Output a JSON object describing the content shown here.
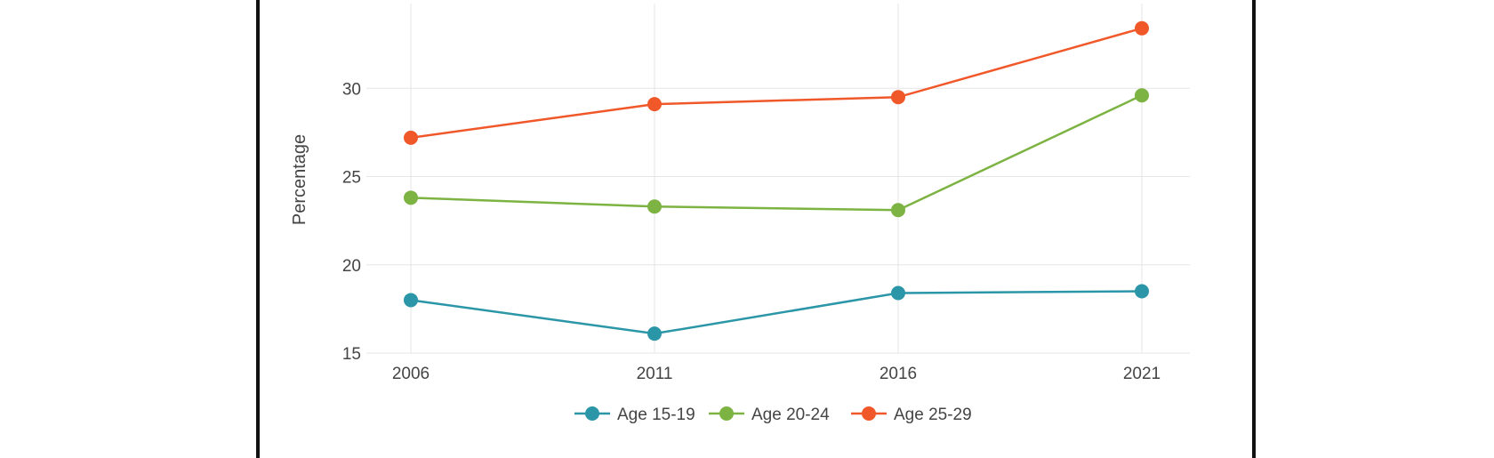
{
  "chart_data": {
    "type": "line",
    "title": "",
    "xlabel": "",
    "ylabel": "Percentage",
    "x": [
      "2006",
      "2011",
      "2016",
      "2021"
    ],
    "ylim": [
      15,
      34.8
    ],
    "yticks": [
      15,
      20,
      25,
      30
    ],
    "grid": true,
    "legend_position": "bottom",
    "series": [
      {
        "name": "Age 15-19",
        "color": "#2b96a8",
        "values": [
          18.0,
          16.1,
          18.4,
          18.5
        ]
      },
      {
        "name": "Age 20-24",
        "color": "#7cb342",
        "values": [
          23.8,
          23.3,
          23.1,
          29.6
        ]
      },
      {
        "name": "Age 25-29",
        "color": "#f0582a",
        "values": [
          27.2,
          29.1,
          29.5,
          33.4
        ]
      }
    ]
  }
}
